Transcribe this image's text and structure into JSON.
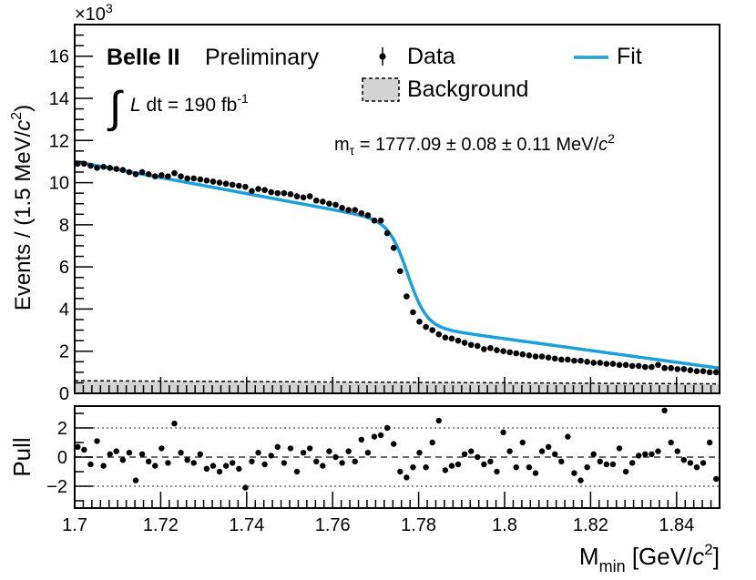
{
  "chart_data": [
    {
      "type": "scatter",
      "panel": "main",
      "experiment_label": "Belle II",
      "status_label": "Preliminary",
      "lumi": {
        "integral_symbol": "∫",
        "var": "L",
        "text": " dt = 190 fb",
        "sup": "-1"
      },
      "result": {
        "prefix": "m",
        "sub": "τ",
        "text": " = 1777.09 ± 0.08 ± 0.11 MeV/",
        "c": "c",
        "sup": "2"
      },
      "ylabel": {
        "pre": "Events / (1.5 MeV/",
        "c": "c",
        "sup": "2",
        "post": ")"
      },
      "y_multiplier": {
        "base": "×10",
        "exp": "3"
      },
      "xlim": [
        1.7,
        1.85
      ],
      "ylim": [
        0,
        17.5
      ],
      "y_ticks": [
        0,
        2,
        4,
        6,
        8,
        10,
        12,
        14,
        16
      ],
      "legend": {
        "position": "top-right",
        "data": "Data",
        "fit": "Fit",
        "background": "Background"
      },
      "colors": {
        "fit": "#1a9fd8",
        "data": "#000000",
        "background": "#d3d3d3"
      },
      "fit_model": {
        "low_intercept": 11.0,
        "low_slope_per_gev": -38,
        "step_height": 5.05,
        "step_center_gev": 1.7775,
        "step_width_gev": 0.0022,
        "high_level": 3.0,
        "high_slope_per_gev": -28
      },
      "background": {
        "x": [
          1.7,
          1.85
        ],
        "y": [
          0.6,
          0.45
        ]
      },
      "data": {
        "x": [
          1.7007,
          1.7022,
          1.7037,
          1.7052,
          1.7067,
          1.7082,
          1.7097,
          1.7112,
          1.7127,
          1.7142,
          1.7157,
          1.7172,
          1.7187,
          1.7202,
          1.7217,
          1.7232,
          1.7247,
          1.7262,
          1.7277,
          1.7292,
          1.7307,
          1.7322,
          1.7337,
          1.7352,
          1.7367,
          1.7382,
          1.7397,
          1.7412,
          1.7427,
          1.7442,
          1.7457,
          1.7472,
          1.7487,
          1.7502,
          1.7517,
          1.7532,
          1.7547,
          1.7562,
          1.7577,
          1.7592,
          1.7607,
          1.7622,
          1.7637,
          1.7652,
          1.7667,
          1.7682,
          1.7697,
          1.7712,
          1.7727,
          1.7742,
          1.7757,
          1.7772,
          1.7787,
          1.7802,
          1.7817,
          1.7832,
          1.7847,
          1.7862,
          1.7877,
          1.7892,
          1.7907,
          1.7922,
          1.7937,
          1.7952,
          1.7967,
          1.7982,
          1.7997,
          1.8012,
          1.8027,
          1.8042,
          1.8057,
          1.8072,
          1.8087,
          1.8102,
          1.8117,
          1.8132,
          1.8147,
          1.8162,
          1.8177,
          1.8192,
          1.8207,
          1.8222,
          1.8237,
          1.8252,
          1.8267,
          1.8282,
          1.8297,
          1.8312,
          1.8327,
          1.8342,
          1.8357,
          1.8372,
          1.8387,
          1.8402,
          1.8417,
          1.8432,
          1.8447,
          1.8462,
          1.8477,
          1.8492
        ],
        "y": [
          10.9,
          10.9,
          10.8,
          10.7,
          10.75,
          10.7,
          10.65,
          10.6,
          10.5,
          10.4,
          10.5,
          10.4,
          10.3,
          10.35,
          10.3,
          10.45,
          10.3,
          10.2,
          10.2,
          10.15,
          10.1,
          10.05,
          10.0,
          9.95,
          9.9,
          9.85,
          9.8,
          9.6,
          9.7,
          9.65,
          9.55,
          9.5,
          9.5,
          9.45,
          9.35,
          9.3,
          9.35,
          9.15,
          9.1,
          9.0,
          8.95,
          8.8,
          8.7,
          8.7,
          8.55,
          8.45,
          8.2,
          8.2,
          7.6,
          6.9,
          5.8,
          4.6,
          3.85,
          3.4,
          3.15,
          3.0,
          2.8,
          2.65,
          2.6,
          2.5,
          2.4,
          2.3,
          2.25,
          2.1,
          2.15,
          2.05,
          2.0,
          1.95,
          1.9,
          1.85,
          1.8,
          1.75,
          1.75,
          1.7,
          1.65,
          1.6,
          1.6,
          1.55,
          1.55,
          1.5,
          1.45,
          1.45,
          1.4,
          1.4,
          1.35,
          1.35,
          1.3,
          1.3,
          1.25,
          1.25,
          1.35,
          1.2,
          1.2,
          1.15,
          1.15,
          1.1,
          1.05,
          1.05,
          1.0,
          1.0
        ]
      }
    },
    {
      "type": "scatter",
      "panel": "pull",
      "ylabel": "Pull",
      "xlabel": {
        "main": "M",
        "sub": "min",
        "text": " [GeV/",
        "c": "c",
        "sup": "2",
        "close": "]"
      },
      "xlim": [
        1.7,
        1.85
      ],
      "ylim": [
        -3.5,
        3.5
      ],
      "x_ticks": [
        1.7,
        1.72,
        1.74,
        1.76,
        1.78,
        1.8,
        1.82,
        1.84
      ],
      "x_tick_labels": [
        "1.7",
        "1.72",
        "1.74",
        "1.76",
        "1.78",
        "1.8",
        "1.82",
        "1.84"
      ],
      "y_ticks": [
        -2,
        0,
        2
      ],
      "y_tick_labels": [
        "−2",
        "0",
        "2"
      ],
      "reference_lines": [
        -2,
        0,
        2
      ],
      "data": {
        "x": [
          1.7007,
          1.7022,
          1.7037,
          1.7052,
          1.7067,
          1.7082,
          1.7097,
          1.7112,
          1.7127,
          1.7142,
          1.7157,
          1.7172,
          1.7187,
          1.7202,
          1.7217,
          1.7232,
          1.7247,
          1.7262,
          1.7277,
          1.7292,
          1.7307,
          1.7322,
          1.7337,
          1.7352,
          1.7367,
          1.7382,
          1.7397,
          1.7412,
          1.7427,
          1.7442,
          1.7457,
          1.7472,
          1.7487,
          1.7502,
          1.7517,
          1.7532,
          1.7547,
          1.7562,
          1.7577,
          1.7592,
          1.7607,
          1.7622,
          1.7637,
          1.7652,
          1.7667,
          1.7682,
          1.7697,
          1.7712,
          1.7727,
          1.7742,
          1.7757,
          1.7772,
          1.7787,
          1.7802,
          1.7817,
          1.7832,
          1.7847,
          1.7862,
          1.7877,
          1.7892,
          1.7907,
          1.7922,
          1.7937,
          1.7952,
          1.7967,
          1.7982,
          1.7997,
          1.8012,
          1.8027,
          1.8042,
          1.8057,
          1.8072,
          1.8087,
          1.8102,
          1.8117,
          1.8132,
          1.8147,
          1.8162,
          1.8177,
          1.8192,
          1.8207,
          1.8222,
          1.8237,
          1.8252,
          1.8267,
          1.8282,
          1.8297,
          1.8312,
          1.8327,
          1.8342,
          1.8357,
          1.8372,
          1.8387,
          1.8402,
          1.8417,
          1.8432,
          1.8447,
          1.8462,
          1.8477,
          1.8492
        ],
        "y": [
          0.7,
          0.5,
          -0.5,
          1.1,
          -0.6,
          0.2,
          0.4,
          -0.2,
          0.3,
          -1.6,
          0.2,
          -0.3,
          -0.6,
          0.6,
          -0.4,
          2.3,
          0.3,
          -0.2,
          -0.4,
          0.2,
          -0.8,
          -0.6,
          -1.0,
          -0.6,
          -0.4,
          -0.8,
          -2.1,
          -0.3,
          0.3,
          -0.5,
          0.1,
          0.7,
          -0.4,
          0.6,
          -1.0,
          0.3,
          0.6,
          -0.3,
          -0.6,
          0.4,
          0.0,
          -0.4,
          0.4,
          -0.3,
          1.2,
          0.3,
          1.4,
          1.5,
          2.0,
          0.9,
          -1.0,
          -1.4,
          -0.7,
          0.3,
          -0.7,
          1.0,
          2.5,
          -0.9,
          -0.6,
          -0.5,
          0.2,
          0.4,
          0.0,
          -0.5,
          -0.3,
          -1.0,
          1.7,
          0.4,
          -0.7,
          1.0,
          -0.7,
          -1.1,
          0.4,
          0.7,
          0.2,
          -0.3,
          1.4,
          -1.1,
          -1.6,
          -0.7,
          0.2,
          -0.3,
          -0.5,
          -0.5,
          0.6,
          -1.0,
          -0.4,
          0.1,
          0.2,
          0.2,
          0.4,
          3.2,
          1.0,
          0.4,
          -0.2,
          -0.4,
          -0.7,
          -0.4,
          1.0,
          -1.5
        ]
      }
    }
  ]
}
